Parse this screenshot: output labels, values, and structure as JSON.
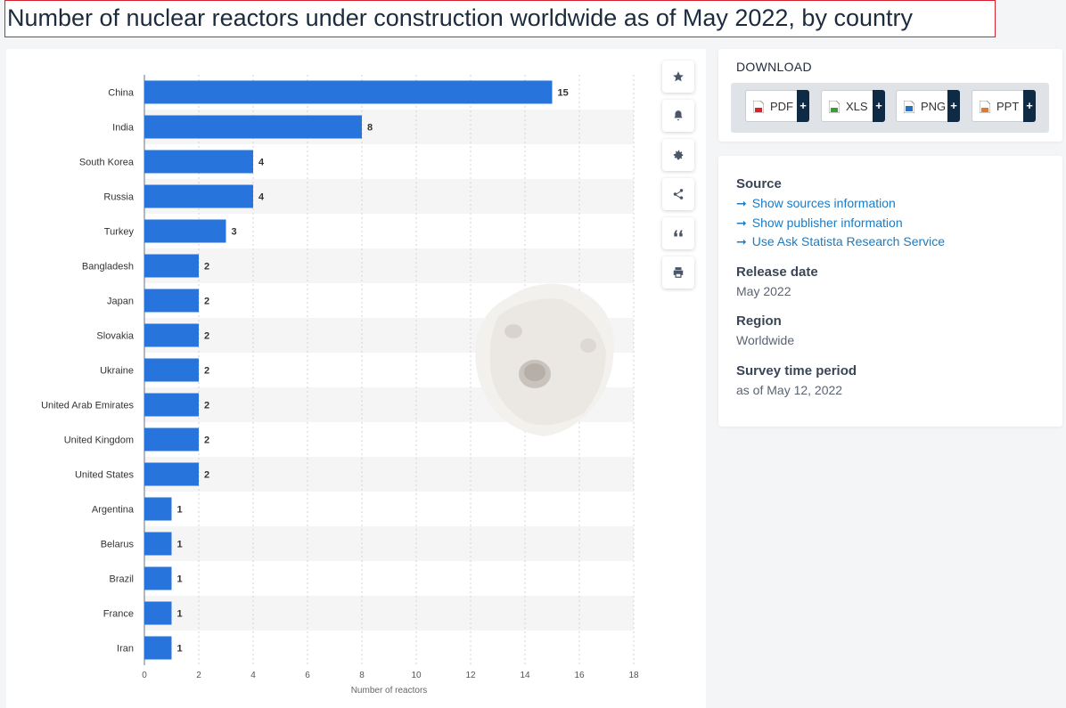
{
  "page": {
    "title": "Number of nuclear reactors under construction worldwide as of May 2022, by country"
  },
  "toolbar": {
    "icons": [
      "star-icon",
      "bell-icon",
      "gear-icon",
      "share-icon",
      "quote-icon",
      "print-icon"
    ]
  },
  "download": {
    "title": "DOWNLOAD",
    "buttons": [
      {
        "label": "PDF",
        "plus": "+",
        "color": "#d9232e"
      },
      {
        "label": "XLS",
        "plus": "+",
        "color": "#3f9b3a"
      },
      {
        "label": "PNG",
        "plus": "+",
        "color": "#2d6fbf"
      },
      {
        "label": "PPT",
        "plus": "+",
        "color": "#e3782a"
      }
    ]
  },
  "info": {
    "source_heading": "Source",
    "links": [
      "Show sources information",
      "Show publisher information",
      "Use Ask Statista Research Service"
    ],
    "release_heading": "Release date",
    "release_value": "May 2022",
    "region_heading": "Region",
    "region_value": "Worldwide",
    "survey_heading": "Survey time period",
    "survey_value": "as of May 12, 2022"
  },
  "colors": {
    "bar": "#2774dc",
    "band": "#f5f5f5",
    "accent_link": "#1b7bc4",
    "title_border": "#d6212f"
  },
  "chart_data": {
    "type": "bar",
    "orientation": "horizontal",
    "categories": [
      "China",
      "India",
      "South Korea",
      "Russia",
      "Turkey",
      "Bangladesh",
      "Japan",
      "Slovakia",
      "Ukraine",
      "United Arab Emirates",
      "United Kingdom",
      "United States",
      "Argentina",
      "Belarus",
      "Brazil",
      "France",
      "Iran"
    ],
    "values": [
      15,
      8,
      4,
      4,
      3,
      2,
      2,
      2,
      2,
      2,
      2,
      2,
      1,
      1,
      1,
      1,
      1
    ],
    "xlabel": "Number of reactors",
    "ylabel": "",
    "xlim": [
      0,
      18
    ],
    "xticks": [
      0,
      2,
      4,
      6,
      8,
      10,
      12,
      14,
      16,
      18
    ],
    "grid": "vertical dotted",
    "data_labels": true
  }
}
